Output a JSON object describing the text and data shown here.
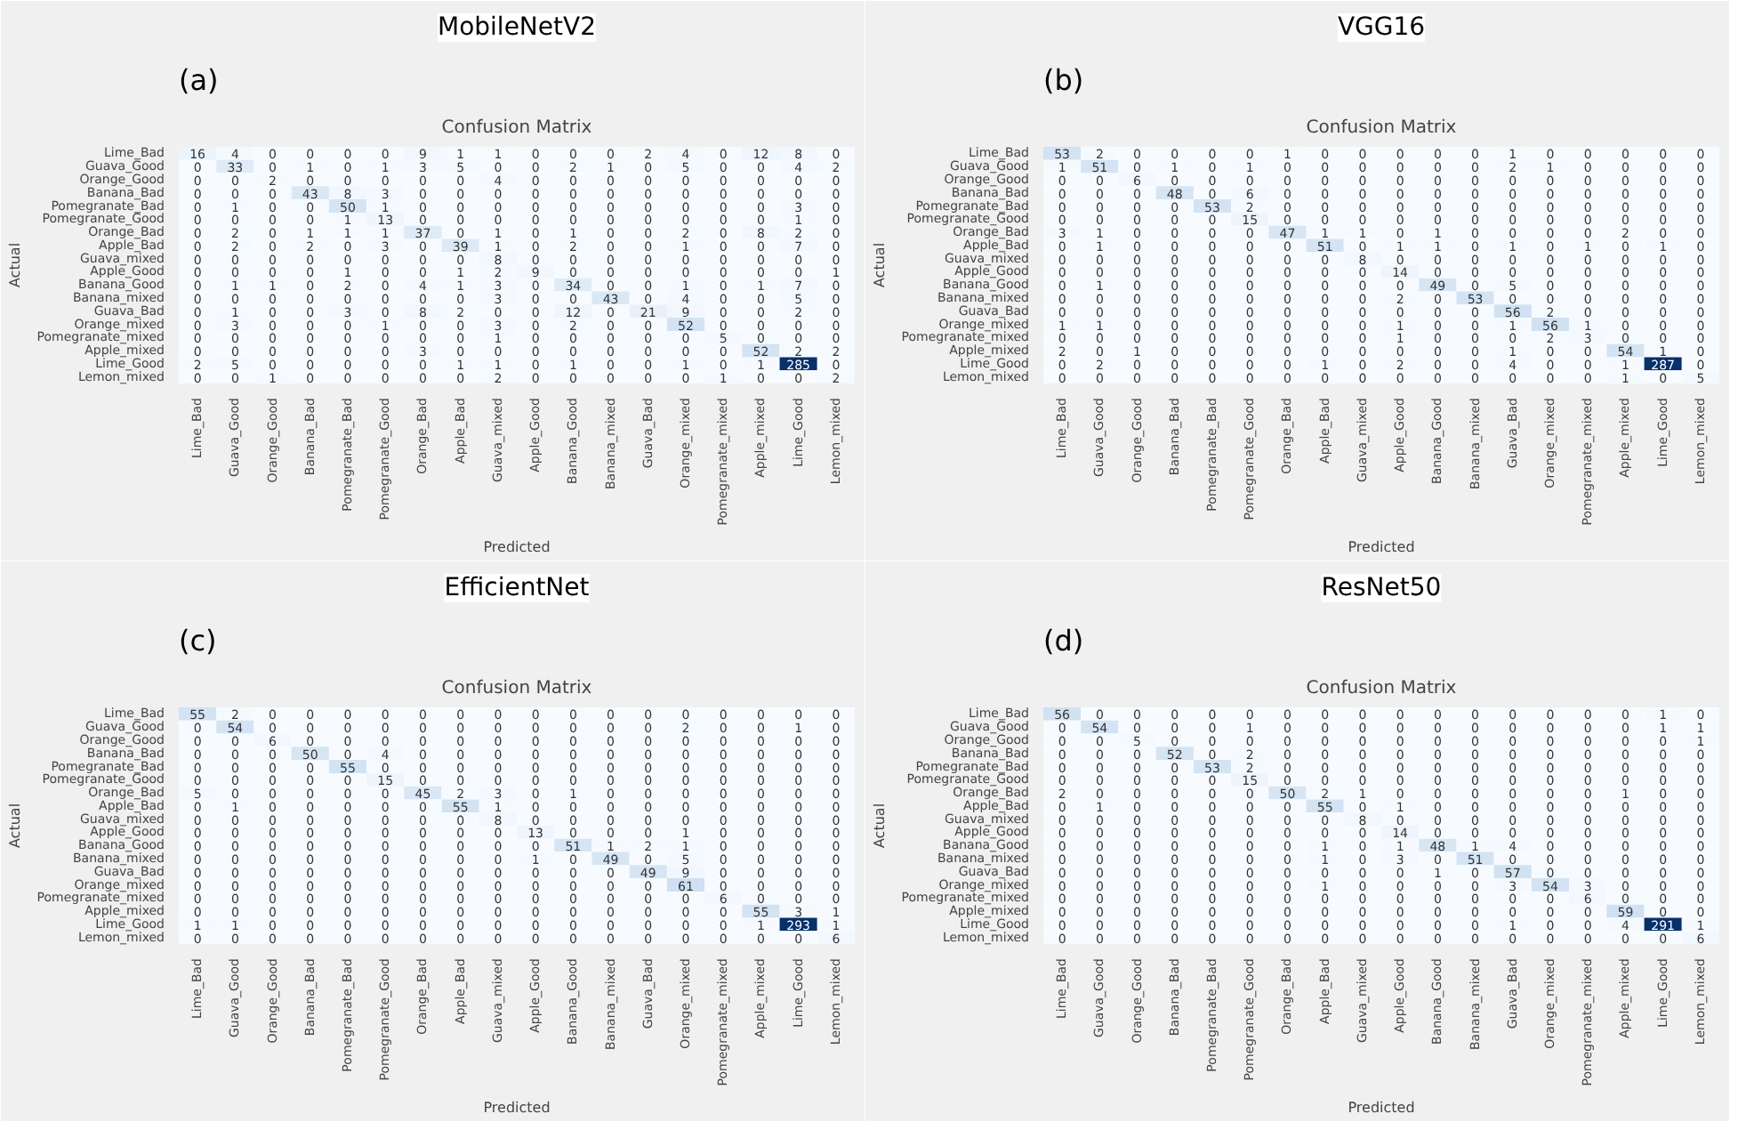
{
  "chart_data": [
    {
      "type": "heatmap",
      "title": "MobileNetV2",
      "subtitle": "Confusion Matrix",
      "xlabel": "Predicted",
      "ylabel": "Actual",
      "annotations": [
        "(a)"
      ],
      "data_labels": true,
      "categories": [
        "Lime_Bad",
        "Guava_Good",
        "Orange_Good",
        "Banana_Bad",
        "Pomegranate_Bad",
        "Pomegranate_Good",
        "Orange_Bad",
        "Apple_Bad",
        "Guava_mixed",
        "Apple_Good",
        "Banana_Good",
        "Banana_mixed",
        "Guava_Bad",
        "Orange_mixed",
        "Pomegranate_mixed",
        "Apple_mixed",
        "Lime_Good",
        "Lemon_mixed"
      ],
      "y_categories": [
        "Lime_Bad",
        "Guava_Good",
        "Orange_Good",
        "Banana_Bad",
        "Pomegranate_Bad",
        "Pomegranate_Good",
        "Orange_Bad",
        "Apple_Bad",
        "Guava_mixed",
        "Apple_Good",
        "Banana_Good",
        "Banana_mixed",
        "Guava_Bad",
        "Orange_mixed",
        "Pomegranate_mixed",
        "Apple_mixed",
        "Lime_Good",
        "Lemon_mixed"
      ],
      "cells": [
        [
          16,
          4,
          0,
          0,
          0,
          0,
          9,
          1,
          1,
          0,
          0,
          0,
          2,
          4,
          0,
          12,
          8,
          0
        ],
        [
          0,
          33,
          0,
          1,
          0,
          1,
          3,
          5,
          0,
          0,
          2,
          1,
          0,
          5,
          0,
          0,
          4,
          2
        ],
        [
          0,
          0,
          2,
          0,
          0,
          0,
          0,
          0,
          4,
          0,
          0,
          0,
          0,
          0,
          0,
          0,
          0,
          0
        ],
        [
          0,
          0,
          0,
          43,
          8,
          3,
          0,
          0,
          0,
          0,
          0,
          0,
          0,
          0,
          0,
          0,
          0,
          0
        ],
        [
          0,
          1,
          0,
          0,
          50,
          1,
          0,
          0,
          0,
          0,
          0,
          0,
          0,
          0,
          0,
          0,
          3,
          0
        ],
        [
          0,
          0,
          0,
          0,
          1,
          13,
          0,
          0,
          0,
          0,
          0,
          0,
          0,
          0,
          0,
          0,
          1,
          0
        ],
        [
          0,
          2,
          0,
          1,
          1,
          1,
          37,
          0,
          1,
          0,
          1,
          0,
          0,
          2,
          0,
          8,
          2,
          0
        ],
        [
          0,
          2,
          0,
          2,
          0,
          3,
          0,
          39,
          1,
          0,
          2,
          0,
          0,
          1,
          0,
          0,
          7,
          0
        ],
        [
          0,
          0,
          0,
          0,
          0,
          0,
          0,
          0,
          8,
          0,
          0,
          0,
          0,
          0,
          0,
          0,
          0,
          0
        ],
        [
          0,
          0,
          0,
          0,
          1,
          0,
          0,
          1,
          2,
          9,
          0,
          0,
          0,
          0,
          0,
          0,
          0,
          1
        ],
        [
          0,
          1,
          1,
          0,
          2,
          0,
          4,
          1,
          3,
          0,
          34,
          0,
          0,
          1,
          0,
          1,
          7,
          0
        ],
        [
          0,
          0,
          0,
          0,
          0,
          0,
          0,
          0,
          3,
          0,
          0,
          43,
          0,
          4,
          0,
          0,
          5,
          0
        ],
        [
          0,
          1,
          0,
          0,
          3,
          0,
          8,
          2,
          0,
          0,
          12,
          0,
          21,
          9,
          0,
          0,
          2,
          0
        ],
        [
          0,
          3,
          0,
          0,
          0,
          1,
          0,
          0,
          3,
          0,
          2,
          0,
          0,
          52,
          0,
          0,
          0,
          0
        ],
        [
          0,
          0,
          0,
          0,
          0,
          0,
          0,
          0,
          1,
          0,
          0,
          0,
          0,
          0,
          5,
          0,
          0,
          0
        ],
        [
          0,
          0,
          0,
          0,
          0,
          0,
          3,
          0,
          0,
          0,
          0,
          0,
          0,
          0,
          0,
          52,
          2,
          2
        ],
        [
          2,
          5,
          0,
          0,
          0,
          0,
          0,
          1,
          1,
          0,
          1,
          0,
          0,
          1,
          0,
          1,
          285,
          0
        ],
        [
          0,
          0,
          1,
          0,
          0,
          0,
          0,
          0,
          2,
          0,
          0,
          0,
          0,
          0,
          1,
          0,
          0,
          2
        ]
      ]
    },
    {
      "type": "heatmap",
      "title": "VGG16",
      "subtitle": "Confusion Matrix",
      "xlabel": "Predicted",
      "ylabel": "Actual",
      "annotations": [
        "(b)"
      ],
      "data_labels": true,
      "categories": [
        "Lime_Bad",
        "Guava_Good",
        "Orange_Good",
        "Banana_Bad",
        "Pomegranate_Bad",
        "Pomegranate_Good",
        "Orange_Bad",
        "Apple_Bad",
        "Guava_mixed",
        "Apple_Good",
        "Banana_Good",
        "Banana_mixed",
        "Guava_Bad",
        "Orange_mixed",
        "Pomegranate_mixed",
        "Apple_mixed",
        "Lime_Good",
        "Lemon_mixed"
      ],
      "y_categories": [
        "Lime_Bad",
        "Guava_Good",
        "Orange_Good",
        "Banana_Bad",
        "Pomegranate_Bad",
        "Pomegranate_Good",
        "Orange_Bad",
        "Apple_Bad",
        "Guava_mixed",
        "Apple_Good",
        "Banana_Good",
        "Banana_mixed",
        "Guava_Bad",
        "Orange_mixed",
        "Pomegranate_mixed",
        "Apple_mixed",
        "Lime_Good",
        "Lemon_mixed"
      ],
      "cells": [
        [
          53,
          2,
          0,
          0,
          0,
          0,
          1,
          0,
          0,
          0,
          0,
          0,
          1,
          0,
          0,
          0,
          0,
          0
        ],
        [
          1,
          51,
          0,
          1,
          0,
          1,
          0,
          0,
          0,
          0,
          0,
          0,
          2,
          1,
          0,
          0,
          0,
          0
        ],
        [
          0,
          0,
          6,
          0,
          0,
          0,
          0,
          0,
          0,
          0,
          0,
          0,
          0,
          0,
          0,
          0,
          0,
          0
        ],
        [
          0,
          0,
          0,
          48,
          0,
          6,
          0,
          0,
          0,
          0,
          0,
          0,
          0,
          0,
          0,
          0,
          0,
          0
        ],
        [
          0,
          0,
          0,
          0,
          53,
          2,
          0,
          0,
          0,
          0,
          0,
          0,
          0,
          0,
          0,
          0,
          0,
          0
        ],
        [
          0,
          0,
          0,
          0,
          0,
          15,
          0,
          0,
          0,
          0,
          0,
          0,
          0,
          0,
          0,
          0,
          0,
          0
        ],
        [
          3,
          1,
          0,
          0,
          0,
          0,
          47,
          1,
          1,
          0,
          1,
          0,
          0,
          0,
          0,
          2,
          0,
          0
        ],
        [
          0,
          1,
          0,
          0,
          0,
          0,
          0,
          51,
          0,
          1,
          1,
          0,
          1,
          0,
          1,
          0,
          1,
          0
        ],
        [
          0,
          0,
          0,
          0,
          0,
          0,
          0,
          0,
          8,
          0,
          0,
          0,
          0,
          0,
          0,
          0,
          0,
          0
        ],
        [
          0,
          0,
          0,
          0,
          0,
          0,
          0,
          0,
          0,
          14,
          0,
          0,
          0,
          0,
          0,
          0,
          0,
          0
        ],
        [
          0,
          1,
          0,
          0,
          0,
          0,
          0,
          0,
          0,
          0,
          49,
          0,
          5,
          0,
          0,
          0,
          0,
          0
        ],
        [
          0,
          0,
          0,
          0,
          0,
          0,
          0,
          0,
          0,
          2,
          0,
          53,
          0,
          0,
          0,
          0,
          0,
          0
        ],
        [
          0,
          0,
          0,
          0,
          0,
          0,
          0,
          0,
          0,
          0,
          0,
          0,
          56,
          2,
          0,
          0,
          0,
          0
        ],
        [
          1,
          1,
          0,
          0,
          0,
          0,
          0,
          0,
          0,
          1,
          0,
          0,
          1,
          56,
          1,
          0,
          0,
          0
        ],
        [
          0,
          0,
          0,
          0,
          0,
          0,
          0,
          0,
          0,
          1,
          0,
          0,
          0,
          2,
          3,
          0,
          0,
          0
        ],
        [
          2,
          0,
          1,
          0,
          0,
          0,
          0,
          0,
          0,
          0,
          0,
          0,
          1,
          0,
          0,
          54,
          1,
          0
        ],
        [
          0,
          2,
          0,
          0,
          0,
          0,
          0,
          1,
          0,
          2,
          0,
          0,
          4,
          0,
          0,
          1,
          287,
          0
        ],
        [
          0,
          0,
          0,
          0,
          0,
          0,
          0,
          0,
          0,
          0,
          0,
          0,
          0,
          0,
          0,
          1,
          0,
          5
        ]
      ]
    },
    {
      "type": "heatmap",
      "title": "EfficientNet",
      "subtitle": "Confusion Matrix",
      "xlabel": "Predicted",
      "ylabel": "Actual",
      "annotations": [
        "(c)"
      ],
      "data_labels": true,
      "categories": [
        "Lime_Bad",
        "Guava_Good",
        "Orange_Good",
        "Banana_Bad",
        "Pomegranate_Bad",
        "Pomegranate_Good",
        "Orange_Bad",
        "Apple_Bad",
        "Guava_mixed",
        "Apple_Good",
        "Banana_Good",
        "Banana_mixed",
        "Guava_Bad",
        "Orange_mixed",
        "Pomegranate_mixed",
        "Apple_mixed",
        "Lime_Good",
        "Lemon_mixed"
      ],
      "y_categories": [
        "Lime_Bad",
        "Guava_Good",
        "Orange_Good",
        "Banana_Bad",
        "Pomegranate_Bad",
        "Pomegranate_Good",
        "Orange_Bad",
        "Apple_Bad",
        "Guava_mixed",
        "Apple_Good",
        "Banana_Good",
        "Banana_mixed",
        "Guava_Bad",
        "Orange_mixed",
        "Pomegranate_mixed",
        "Apple_mixed",
        "Lime_Good",
        "Lemon_mixed"
      ],
      "cells": [
        [
          55,
          2,
          0,
          0,
          0,
          0,
          0,
          0,
          0,
          0,
          0,
          0,
          0,
          0,
          0,
          0,
          0,
          0
        ],
        [
          0,
          54,
          0,
          0,
          0,
          0,
          0,
          0,
          0,
          0,
          0,
          0,
          0,
          2,
          0,
          0,
          1,
          0
        ],
        [
          0,
          0,
          6,
          0,
          0,
          0,
          0,
          0,
          0,
          0,
          0,
          0,
          0,
          0,
          0,
          0,
          0,
          0
        ],
        [
          0,
          0,
          0,
          50,
          0,
          4,
          0,
          0,
          0,
          0,
          0,
          0,
          0,
          0,
          0,
          0,
          0,
          0
        ],
        [
          0,
          0,
          0,
          0,
          55,
          0,
          0,
          0,
          0,
          0,
          0,
          0,
          0,
          0,
          0,
          0,
          0,
          0
        ],
        [
          0,
          0,
          0,
          0,
          0,
          15,
          0,
          0,
          0,
          0,
          0,
          0,
          0,
          0,
          0,
          0,
          0,
          0
        ],
        [
          5,
          0,
          0,
          0,
          0,
          0,
          45,
          2,
          3,
          0,
          1,
          0,
          0,
          0,
          0,
          0,
          0,
          0
        ],
        [
          0,
          1,
          0,
          0,
          0,
          0,
          0,
          55,
          1,
          0,
          0,
          0,
          0,
          0,
          0,
          0,
          0,
          0
        ],
        [
          0,
          0,
          0,
          0,
          0,
          0,
          0,
          0,
          8,
          0,
          0,
          0,
          0,
          0,
          0,
          0,
          0,
          0
        ],
        [
          0,
          0,
          0,
          0,
          0,
          0,
          0,
          0,
          0,
          13,
          0,
          0,
          0,
          1,
          0,
          0,
          0,
          0
        ],
        [
          0,
          0,
          0,
          0,
          0,
          0,
          0,
          0,
          0,
          0,
          51,
          1,
          2,
          1,
          0,
          0,
          0,
          0
        ],
        [
          0,
          0,
          0,
          0,
          0,
          0,
          0,
          0,
          0,
          1,
          0,
          49,
          0,
          5,
          0,
          0,
          0,
          0
        ],
        [
          0,
          0,
          0,
          0,
          0,
          0,
          0,
          0,
          0,
          0,
          0,
          0,
          49,
          9,
          0,
          0,
          0,
          0
        ],
        [
          0,
          0,
          0,
          0,
          0,
          0,
          0,
          0,
          0,
          0,
          0,
          0,
          0,
          61,
          0,
          0,
          0,
          0
        ],
        [
          0,
          0,
          0,
          0,
          0,
          0,
          0,
          0,
          0,
          0,
          0,
          0,
          0,
          0,
          6,
          0,
          0,
          0
        ],
        [
          0,
          0,
          0,
          0,
          0,
          0,
          0,
          0,
          0,
          0,
          0,
          0,
          0,
          0,
          0,
          55,
          3,
          1
        ],
        [
          1,
          1,
          0,
          0,
          0,
          0,
          0,
          0,
          0,
          0,
          0,
          0,
          0,
          0,
          0,
          1,
          293,
          1
        ],
        [
          0,
          0,
          0,
          0,
          0,
          0,
          0,
          0,
          0,
          0,
          0,
          0,
          0,
          0,
          0,
          0,
          0,
          6
        ]
      ]
    },
    {
      "type": "heatmap",
      "title": "ResNet50",
      "subtitle": "Confusion Matrix",
      "xlabel": "Predicted",
      "ylabel": "Actual",
      "annotations": [
        "(d)"
      ],
      "data_labels": true,
      "categories": [
        "Lime_Bad",
        "Guava_Good",
        "Orange_Good",
        "Banana_Bad",
        "Pomegranate_Bad",
        "Pomegranate_Good",
        "Orange_Bad",
        "Apple_Bad",
        "Guava_mixed",
        "Apple_Good",
        "Banana_Good",
        "Banana_mixed",
        "Guava_Bad",
        "Orange_mixed",
        "Pomegranate_mixed",
        "Apple_mixed",
        "Lime_Good",
        "Lemon_mixed"
      ],
      "y_categories": [
        "Lime_Bad",
        "Guava_Good",
        "Orange_Good",
        "Banana_Bad",
        "Pomegranate_Bad",
        "Pomegranate_Good",
        "Orange_Bad",
        "Apple_Bad",
        "Guava_mixed",
        "Apple_Good",
        "Banana_Good",
        "Banana_mixed",
        "Guava_Bad",
        "Orange_mixed",
        "Pomegranate_mixed",
        "Apple_mixed",
        "Lime_Good",
        "Lemon_mixed"
      ],
      "cells": [
        [
          56,
          0,
          0,
          0,
          0,
          0,
          0,
          0,
          0,
          0,
          0,
          0,
          0,
          0,
          0,
          0,
          1,
          0
        ],
        [
          0,
          54,
          0,
          0,
          0,
          1,
          0,
          0,
          0,
          0,
          0,
          0,
          0,
          0,
          0,
          0,
          1,
          1
        ],
        [
          0,
          0,
          5,
          0,
          0,
          0,
          0,
          0,
          0,
          0,
          0,
          0,
          0,
          0,
          0,
          0,
          0,
          1
        ],
        [
          0,
          0,
          0,
          52,
          0,
          2,
          0,
          0,
          0,
          0,
          0,
          0,
          0,
          0,
          0,
          0,
          0,
          0
        ],
        [
          0,
          0,
          0,
          0,
          53,
          2,
          0,
          0,
          0,
          0,
          0,
          0,
          0,
          0,
          0,
          0,
          0,
          0
        ],
        [
          0,
          0,
          0,
          0,
          0,
          15,
          0,
          0,
          0,
          0,
          0,
          0,
          0,
          0,
          0,
          0,
          0,
          0
        ],
        [
          2,
          0,
          0,
          0,
          0,
          0,
          50,
          2,
          1,
          0,
          0,
          0,
          0,
          0,
          0,
          1,
          0,
          0
        ],
        [
          0,
          1,
          0,
          0,
          0,
          0,
          0,
          55,
          0,
          1,
          0,
          0,
          0,
          0,
          0,
          0,
          0,
          0
        ],
        [
          0,
          0,
          0,
          0,
          0,
          0,
          0,
          0,
          8,
          0,
          0,
          0,
          0,
          0,
          0,
          0,
          0,
          0
        ],
        [
          0,
          0,
          0,
          0,
          0,
          0,
          0,
          0,
          0,
          14,
          0,
          0,
          0,
          0,
          0,
          0,
          0,
          0
        ],
        [
          0,
          0,
          0,
          0,
          0,
          0,
          0,
          1,
          0,
          1,
          48,
          1,
          4,
          0,
          0,
          0,
          0,
          0
        ],
        [
          0,
          0,
          0,
          0,
          0,
          0,
          0,
          1,
          0,
          3,
          0,
          51,
          0,
          0,
          0,
          0,
          0,
          0
        ],
        [
          0,
          0,
          0,
          0,
          0,
          0,
          0,
          0,
          0,
          0,
          1,
          0,
          57,
          0,
          0,
          0,
          0,
          0
        ],
        [
          0,
          0,
          0,
          0,
          0,
          0,
          0,
          1,
          0,
          0,
          0,
          0,
          3,
          54,
          3,
          0,
          0,
          0
        ],
        [
          0,
          0,
          0,
          0,
          0,
          0,
          0,
          0,
          0,
          0,
          0,
          0,
          0,
          0,
          6,
          0,
          0,
          0
        ],
        [
          0,
          0,
          0,
          0,
          0,
          0,
          0,
          0,
          0,
          0,
          0,
          0,
          0,
          0,
          0,
          59,
          0,
          0
        ],
        [
          0,
          0,
          0,
          0,
          0,
          0,
          0,
          0,
          0,
          0,
          0,
          0,
          1,
          0,
          0,
          4,
          291,
          1
        ],
        [
          0,
          0,
          0,
          0,
          0,
          0,
          0,
          0,
          0,
          0,
          0,
          0,
          0,
          0,
          0,
          0,
          0,
          6
        ]
      ]
    }
  ]
}
